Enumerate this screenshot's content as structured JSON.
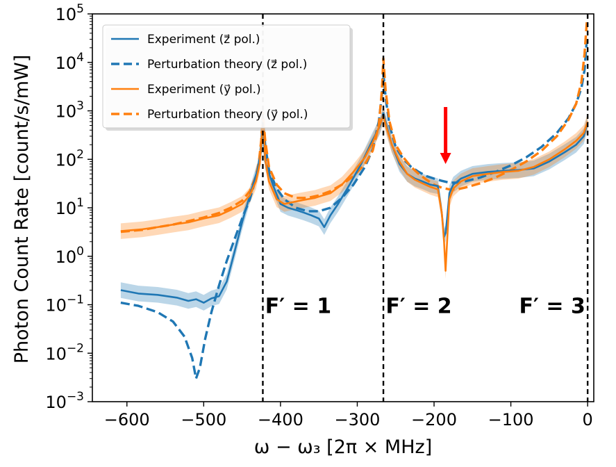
{
  "chart_data": {
    "type": "line",
    "title": "",
    "xlabel": "ω − ω₃ [2π × MHz]",
    "ylabel": "Photon Count Rate [count/s/mW]",
    "xlim": [
      -645,
      8
    ],
    "ylim_log10": [
      -3,
      5
    ],
    "xticks": [
      {
        "value": -600,
        "label": "−600"
      },
      {
        "value": -500,
        "label": "−500"
      },
      {
        "value": -400,
        "label": "−400"
      },
      {
        "value": -300,
        "label": "−300"
      },
      {
        "value": -200,
        "label": "−200"
      },
      {
        "value": -100,
        "label": "−100"
      },
      {
        "value": 0,
        "label": "0"
      }
    ],
    "yticks": [
      {
        "exp": -3,
        "base": "10",
        "sup": "−3"
      },
      {
        "exp": -2,
        "base": "10",
        "sup": "−2"
      },
      {
        "exp": -1,
        "base": "10",
        "sup": "−1"
      },
      {
        "exp": 0,
        "base": "10",
        "sup": "0"
      },
      {
        "exp": 1,
        "base": "10",
        "sup": "1"
      },
      {
        "exp": 2,
        "base": "10",
        "sup": "2"
      },
      {
        "exp": 3,
        "base": "10",
        "sup": "3"
      },
      {
        "exp": 4,
        "base": "10",
        "sup": "4"
      },
      {
        "exp": 5,
        "base": "10",
        "sup": "5"
      }
    ],
    "vlines": [
      -423,
      -266,
      0
    ],
    "annotations": [
      {
        "text": "F′ = 1",
        "x": -420,
        "y": 0.1
      },
      {
        "text": "F′ = 2",
        "x": -263,
        "y": 0.1
      },
      {
        "text": "F′ = 3",
        "x": -3,
        "y": 0.1,
        "anchor": "end"
      }
    ],
    "arrow": {
      "x": -185,
      "y_from": 1200,
      "y_to": 80,
      "color": "#ff0000"
    },
    "legend": {
      "position": "top-left",
      "entries": [
        {
          "label": "Experiment (z⃗ pol.)",
          "color": "#1f77b4",
          "style": "solid"
        },
        {
          "label": "Perturbation theory (z⃗ pol.)",
          "color": "#1f77b4",
          "style": "dashed"
        },
        {
          "label": "Experiment (y⃗ pol.)",
          "color": "#ff7f0e",
          "style": "solid"
        },
        {
          "label": "Perturbation theory (y⃗ pol.)",
          "color": "#ff7f0e",
          "style": "dashed"
        }
      ]
    },
    "series": [
      {
        "name": "Experiment (z⃗ pol.)",
        "color": "#1f77b4",
        "dash": "none",
        "band": true,
        "x": [
          -608,
          -585,
          -560,
          -535,
          -520,
          -510,
          -500,
          -490,
          -480,
          -470,
          -460,
          -450,
          -440,
          -430,
          -425,
          -423,
          -420,
          -410,
          -400,
          -390,
          -380,
          -370,
          -360,
          -350,
          -343,
          -335,
          -325,
          -310,
          -295,
          -280,
          -270,
          -266,
          -262,
          -255,
          -245,
          -235,
          -225,
          -215,
          -205,
          -195,
          -190,
          -187,
          -185,
          -183,
          -180,
          -175,
          -165,
          -150,
          -130,
          -110,
          -90,
          -70,
          -50,
          -30,
          -15,
          -5,
          0
        ],
        "y": [
          0.2,
          0.17,
          0.16,
          0.14,
          0.12,
          0.13,
          0.11,
          0.135,
          0.15,
          0.3,
          1.2,
          5,
          18,
          60,
          150,
          450,
          90,
          30,
          12,
          10,
          9,
          8,
          7,
          6,
          4,
          7,
          12,
          30,
          80,
          250,
          500,
          900,
          500,
          200,
          80,
          50,
          40,
          35,
          30,
          28,
          8,
          2.5,
          3,
          6,
          20,
          30,
          40,
          50,
          55,
          58,
          60,
          65,
          90,
          140,
          200,
          300,
          600
        ]
      },
      {
        "name": "Perturbation theory (z⃗ pol.)",
        "color": "#1f77b4",
        "dash": "dashed",
        "band": false,
        "x": [
          -608,
          -585,
          -560,
          -540,
          -525,
          -515,
          -510,
          -505,
          -498,
          -490,
          -480,
          -470,
          -460,
          -450,
          -440,
          -432,
          -428,
          -425,
          -423,
          -420,
          -415,
          -405,
          -395,
          -380,
          -365,
          -350,
          -335,
          -320,
          -305,
          -290,
          -280,
          -272,
          -268,
          -266,
          -263,
          -258,
          -250,
          -240,
          -230,
          -220,
          -210,
          -200,
          -190,
          -180,
          -170,
          -160,
          -140,
          -120,
          -100,
          -80,
          -60,
          -40,
          -25,
          -15,
          -8,
          -4,
          -1
        ],
        "y": [
          0.11,
          0.095,
          0.07,
          0.045,
          0.022,
          0.008,
          0.003,
          0.005,
          0.02,
          0.07,
          0.25,
          0.8,
          2.2,
          6,
          15,
          40,
          80,
          200,
          700,
          200,
          60,
          25,
          15,
          10,
          8.5,
          8.5,
          10,
          16,
          30,
          70,
          160,
          600,
          2000,
          6000,
          1800,
          500,
          180,
          100,
          70,
          55,
          45,
          40,
          36,
          33,
          33,
          35,
          42,
          55,
          75,
          110,
          180,
          350,
          700,
          1400,
          3000,
          7000,
          30000
        ]
      },
      {
        "name": "Experiment (y⃗ pol.)",
        "color": "#ff7f0e",
        "dash": "none",
        "band": true,
        "x": [
          -608,
          -580,
          -560,
          -540,
          -520,
          -500,
          -480,
          -465,
          -450,
          -440,
          -432,
          -427,
          -424,
          -422,
          -420,
          -415,
          -405,
          -395,
          -385,
          -375,
          -365,
          -355,
          -345,
          -335,
          -320,
          -305,
          -290,
          -280,
          -272,
          -266,
          -262,
          -255,
          -245,
          -235,
          -225,
          -215,
          -205,
          -195,
          -190,
          -187,
          -185,
          -183,
          -180,
          -175,
          -165,
          -150,
          -130,
          -110,
          -90,
          -70,
          -50,
          -30,
          -15,
          -5,
          0
        ],
        "y": [
          3.3,
          3.6,
          4,
          4.5,
          5,
          6,
          7,
          9,
          12,
          18,
          35,
          80,
          350,
          650,
          100,
          35,
          15,
          12,
          13,
          14,
          15,
          16,
          18,
          20,
          30,
          55,
          110,
          220,
          450,
          800,
          450,
          200,
          90,
          50,
          38,
          32,
          27,
          24,
          8,
          2,
          0.5,
          2,
          15,
          25,
          35,
          45,
          50,
          55,
          58,
          70,
          100,
          160,
          240,
          350,
          600
        ]
      },
      {
        "name": "Perturbation theory (y⃗ pol.)",
        "color": "#ff7f0e",
        "dash": "dashed",
        "band": false,
        "x": [
          -608,
          -580,
          -560,
          -540,
          -520,
          -500,
          -480,
          -465,
          -450,
          -440,
          -432,
          -428,
          -425,
          -423,
          -420,
          -415,
          -405,
          -395,
          -380,
          -365,
          -350,
          -335,
          -320,
          -305,
          -290,
          -280,
          -272,
          -268,
          -266,
          -263,
          -258,
          -250,
          -240,
          -230,
          -220,
          -210,
          -200,
          -190,
          -180,
          -170,
          -160,
          -140,
          -120,
          -100,
          -80,
          -60,
          -40,
          -25,
          -15,
          -8,
          -4,
          -1
        ],
        "y": [
          3.2,
          3.5,
          4,
          4.5,
          5.3,
          6.3,
          7.8,
          10,
          14,
          22,
          45,
          90,
          250,
          900,
          250,
          70,
          30,
          20,
          16,
          16,
          18,
          22,
          30,
          45,
          80,
          150,
          500,
          2500,
          12000,
          2500,
          600,
          200,
          110,
          70,
          50,
          38,
          30,
          26,
          24,
          24,
          26,
          32,
          42,
          60,
          90,
          150,
          300,
          650,
          1400,
          4000,
          15000,
          70000
        ]
      }
    ]
  }
}
